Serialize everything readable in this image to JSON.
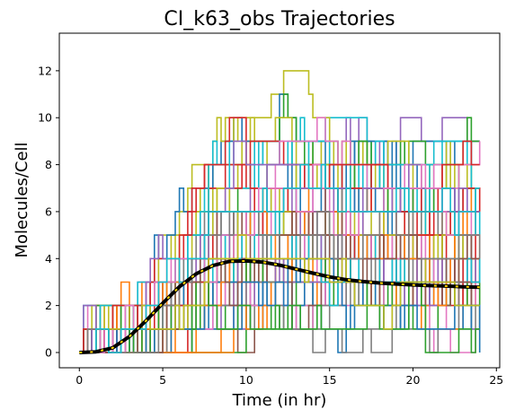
{
  "chart_data": {
    "type": "line",
    "title": "CI_k63_obs Trajectories",
    "xlabel": "Time (in hr)",
    "ylabel": "Molecules/Cell",
    "xlim": [
      -1.2,
      25.2
    ],
    "ylim": [
      -0.65,
      13.6
    ],
    "xticks": [
      0,
      5,
      10,
      15,
      20,
      25
    ],
    "yticks": [
      0,
      2,
      4,
      6,
      8,
      10,
      12
    ],
    "grid": false,
    "legend": "none",
    "series_palette": [
      "#1f77b4",
      "#ff7f0e",
      "#2ca02c",
      "#d62728",
      "#9467bd",
      "#8c564b",
      "#e377c2",
      "#7f7f7f",
      "#bcbd22",
      "#17becf"
    ],
    "trajectory_count": 60,
    "trajectory_step_hr": 0.25,
    "trajectory_max": 13,
    "mean_line_color": "#000000",
    "mean_dash_color": "#ffd700",
    "mean": {
      "x": [
        0,
        1,
        2,
        3,
        4,
        5,
        6,
        7,
        8,
        9,
        10,
        11,
        12,
        13,
        14,
        15,
        16,
        17,
        18,
        19,
        20,
        21,
        22,
        23,
        24
      ],
      "y": [
        0.0,
        0.03,
        0.2,
        0.68,
        1.35,
        2.1,
        2.8,
        3.35,
        3.7,
        3.88,
        3.9,
        3.85,
        3.72,
        3.55,
        3.38,
        3.22,
        3.1,
        3.02,
        2.96,
        2.92,
        2.88,
        2.85,
        2.83,
        2.8,
        2.78
      ]
    }
  }
}
